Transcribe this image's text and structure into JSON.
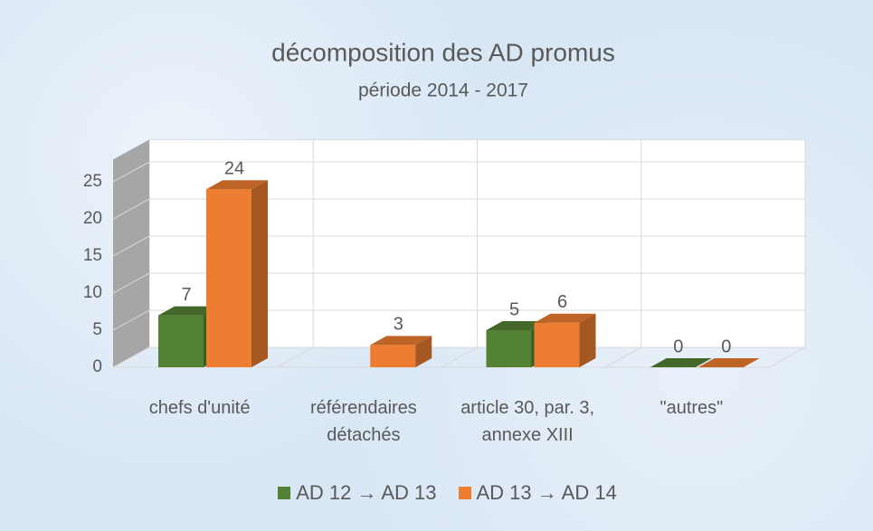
{
  "chart_data": {
    "type": "bar3d",
    "title": "décomposition des AD promus",
    "subtitle": "période 2014 - 2017",
    "categories": [
      "chefs d'unité",
      "référendaires détachés",
      "article 30, par. 3, annexe XIII",
      "\"autres\""
    ],
    "series": [
      {
        "name": "AD 12 → AD 13",
        "color": "#548235",
        "values": [
          7,
          null,
          5,
          0
        ]
      },
      {
        "name": "AD 13 → AD 14",
        "color": "#ed7d31",
        "values": [
          24,
          3,
          6,
          0
        ]
      }
    ],
    "ylim": [
      0,
      28
    ],
    "yticks": [
      0,
      5,
      10,
      15,
      20,
      25
    ],
    "grid": true,
    "legend": "bottom"
  }
}
